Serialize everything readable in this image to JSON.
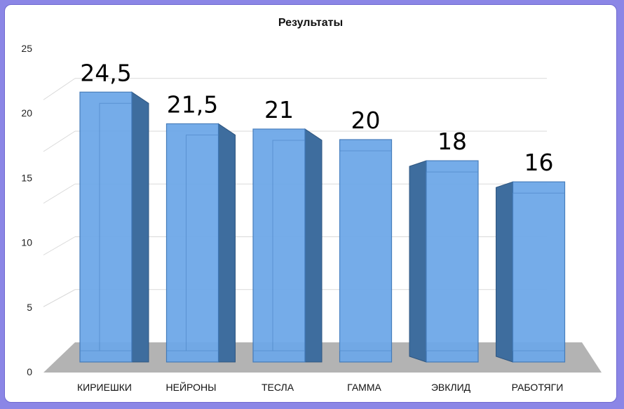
{
  "chart_data": {
    "type": "bar",
    "title": "Результаты",
    "categories": [
      "КИРИЕШКИ",
      "НЕЙРОНЫ",
      "ТЕСЛА",
      "ГАММА",
      "ЭВКЛИД",
      "РАБОТЯГИ"
    ],
    "values": [
      24.5,
      21.5,
      21,
      20,
      18,
      16
    ],
    "data_labels": [
      "24,5",
      "21,5",
      "21",
      "20",
      "18",
      "16"
    ],
    "yticks": [
      0,
      5,
      10,
      15,
      20,
      25
    ],
    "ylim": [
      0,
      25
    ],
    "grid": true,
    "legend": "none",
    "style": "3d-column",
    "colors": {
      "bar_front": "#6ea8e8",
      "bar_side": "#3e6d9e",
      "bar_top": "#8dbdf0",
      "floor": "#b3b3b3",
      "background": "#8b86e6"
    }
  }
}
